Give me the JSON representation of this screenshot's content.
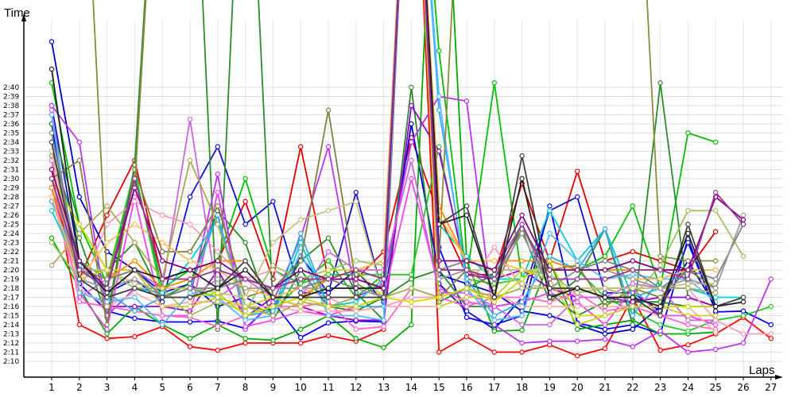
{
  "chart_data": {
    "type": "line",
    "xlabel": "Laps",
    "ylabel": "Time",
    "x": [
      1,
      2,
      3,
      4,
      5,
      6,
      7,
      8,
      9,
      10,
      11,
      12,
      13,
      14,
      15,
      16,
      17,
      18,
      19,
      20,
      21,
      22,
      23,
      24,
      25,
      26,
      27
    ],
    "y_ticks": [
      "2:10",
      "2:11",
      "2:12",
      "2:13",
      "2:14",
      "2:15",
      "2:16",
      "2:17",
      "2:18",
      "2:19",
      "2:20",
      "2:21",
      "2:22",
      "2:23",
      "2:24",
      "2:25",
      "2:26",
      "2:27",
      "2:28",
      "2:29",
      "2:30",
      "2:31",
      "2:32",
      "2:33",
      "2:34",
      "2:35",
      "2:36",
      "2:37",
      "2:38",
      "2:39",
      "2:40"
    ],
    "ylim_seconds": [
      129,
      162
    ],
    "grid": true,
    "series": [
      {
        "color": "#ff0000",
        "values": [
          151,
          134,
          132.5,
          132.7,
          133.8,
          131.6,
          131.2,
          132,
          132,
          132,
          132.8,
          132.2,
          133.5,
          200,
          131,
          132.7,
          131,
          131,
          131.8,
          130.6,
          131.4,
          137,
          131.2,
          131.8,
          133,
          134.8,
          132.5
        ]
      },
      {
        "color": "#e00000",
        "values": [
          149,
          139,
          146,
          152,
          139,
          140,
          141,
          147.5,
          139,
          153.5,
          139,
          139,
          142,
          154.5,
          146,
          139.5,
          139.5,
          149.5,
          141,
          150.8,
          141,
          142,
          141,
          140,
          144.2,
          null,
          null
        ]
      },
      {
        "color": "#0000ff",
        "values": [
          156,
          138.5,
          135.5,
          134.7,
          134.3,
          134.3,
          134.4,
          133.6,
          136.5,
          132.6,
          134.2,
          134.4,
          134.3,
          200,
          142.5,
          134.8,
          134,
          135,
          147,
          134.2,
          133.5,
          134,
          133,
          143.4,
          135.4,
          135.5,
          134
        ]
      },
      {
        "color": "#1010d0",
        "values": [
          158,
          141,
          137.5,
          139,
          136.5,
          148,
          153.5,
          145,
          147.5,
          137.5,
          137.5,
          148.5,
          137,
          200,
          138.5,
          135.5,
          133.5,
          137,
          146.5,
          148,
          137.5,
          137.5,
          135.5,
          143,
          135.5,
          null,
          null
        ]
      },
      {
        "color": "#0000c8",
        "values": [
          165,
          148,
          142,
          140,
          137.5,
          138.5,
          136,
          137,
          135.5,
          141.5,
          137.5,
          140,
          136.5,
          156,
          139.5,
          138.5,
          137.5,
          135.5,
          135,
          134,
          133,
          133.5,
          136,
          141,
          136,
          null,
          null
        ]
      },
      {
        "color": "#00c000",
        "values": [
          160.5,
          145,
          138.5,
          150.5,
          138,
          140,
          141,
          150,
          140,
          138.5,
          141,
          137,
          139.5,
          200,
          164,
          139,
          160.5,
          139,
          141,
          140,
          141.5,
          147,
          138,
          155,
          154,
          null,
          null
        ]
      },
      {
        "color": "#00aa00",
        "values": [
          143.5,
          138,
          133,
          136,
          134,
          132.5,
          134,
          132.5,
          132.3,
          133.5,
          135,
          132.5,
          131.5,
          134,
          200,
          141,
          133.3,
          133.4,
          141,
          133.5,
          134,
          134.5,
          133,
          133,
          133.2,
          null,
          null
        ]
      },
      {
        "color": "#22cc22",
        "values": [
          152.5,
          141,
          139,
          151,
          137,
          138,
          137,
          136,
          135.5,
          138.5,
          139.5,
          139.5,
          139.5,
          139.5,
          153.5,
          139,
          138.5,
          139,
          141.5,
          140,
          137,
          135.5,
          134,
          133.3,
          134.5,
          135,
          136
        ]
      },
      {
        "color": "#2e8b2e",
        "values": [
          153,
          143.5,
          134.8,
          151.5,
          200,
          200,
          133.5,
          200,
          136,
          141,
          143.5,
          137.5,
          134.5,
          160,
          136.5,
          138,
          139.5,
          144.5,
          136.5,
          139,
          144.5,
          134,
          160.5,
          137,
          136,
          null,
          null
        ]
      },
      {
        "color": "#228b22",
        "values": [
          156,
          145,
          140,
          143,
          137,
          138.5,
          146.5,
          143,
          134.5,
          140,
          136,
          135.5,
          137,
          139,
          140,
          136,
          136,
          136.5,
          137.5,
          135,
          136.5,
          136.5,
          136.5,
          136,
          136,
          null,
          null
        ]
      },
      {
        "color": "#9900cc",
        "values": [
          157,
          138,
          136,
          136,
          136,
          135.5,
          140,
          134.8,
          137,
          136,
          135,
          134.5,
          134.5,
          158,
          153,
          139.5,
          139,
          140,
          138,
          137,
          137,
          136.5,
          137,
          137,
          136,
          null,
          null
        ]
      },
      {
        "color": "#bb33ee",
        "values": [
          158,
          154,
          135,
          138,
          137,
          137,
          150.5,
          133.5,
          136.5,
          143.5,
          153.5,
          137,
          138.5,
          154,
          159,
          158.5,
          134,
          132,
          132.2,
          132.2,
          132.4,
          131.6,
          133.3,
          131,
          131.3,
          132,
          139
        ]
      },
      {
        "color": "#cc66dd",
        "values": [
          157.5,
          137,
          139,
          140,
          138,
          156.5,
          137,
          139,
          137,
          137,
          142,
          140,
          140,
          152,
          137.5,
          137.5,
          136,
          134,
          134,
          137,
          137,
          138.5,
          138,
          134.5,
          134.5,
          null,
          null
        ]
      },
      {
        "color": "#ee44ee",
        "values": [
          149,
          137.5,
          133.5,
          148,
          135,
          135,
          148.5,
          133.8,
          134.5,
          135.5,
          135,
          136,
          137,
          150,
          138,
          136.5,
          136,
          136.5,
          137.5,
          136.5,
          134,
          138,
          135,
          135,
          134,
          null,
          null
        ]
      },
      {
        "color": "#ff66cc",
        "values": [
          152,
          136.5,
          136,
          135.5,
          135,
          134.8,
          133.8,
          135,
          136,
          136,
          136.5,
          133.5,
          133.8,
          138,
          137,
          136,
          137,
          137,
          136.5,
          137.5,
          135.5,
          136,
          135,
          134,
          133.5,
          null,
          null
        ]
      },
      {
        "color": "#ff99bb",
        "values": [
          148,
          137.5,
          145,
          147.5,
          146,
          145,
          142,
          139,
          140,
          138,
          137,
          135.5,
          136,
          137,
          137,
          138,
          142.5,
          138,
          138,
          137.5,
          138,
          138,
          138,
          138,
          134.5,
          133,
          133
        ]
      },
      {
        "color": "#ffaaaa",
        "values": [
          153,
          138,
          136,
          137.5,
          136,
          136.5,
          136.5,
          136,
          136,
          135.5,
          135.5,
          135.5,
          136,
          136,
          136,
          137,
          137.5,
          136,
          136,
          136,
          136,
          136,
          136,
          136,
          133.2,
          null,
          null
        ]
      },
      {
        "color": "#00cccc",
        "values": [
          146.5,
          140,
          140,
          138,
          137.5,
          141,
          145.5,
          136,
          135,
          143,
          136,
          136.5,
          139,
          200,
          145,
          141.5,
          139,
          139,
          146.5,
          141,
          144.5,
          137,
          138,
          138,
          137,
          137,
          null
        ]
      },
      {
        "color": "#33aaee",
        "values": [
          147.5,
          140.5,
          137.5,
          135.5,
          137,
          138,
          146,
          135,
          135.5,
          144,
          136,
          136,
          136,
          200,
          157.5,
          139,
          135,
          136.5,
          141.5,
          140,
          144.5,
          135,
          139,
          140,
          138,
          null,
          null
        ]
      },
      {
        "color": "#55bbff",
        "values": [
          157,
          137.5,
          136.5,
          137,
          134,
          137.5,
          137,
          134.5,
          135,
          142,
          135,
          135,
          134.5,
          200,
          159,
          138,
          134.5,
          135,
          144,
          141,
          139,
          139.5,
          139,
          139,
          136.5,
          null,
          null
        ]
      },
      {
        "color": "#808040",
        "values": [
          150,
          152,
          134,
          151,
          142,
          142,
          147,
          137,
          138,
          141,
          157.5,
          138.5,
          137,
          200,
          137,
          140,
          138,
          144.5,
          140,
          140.5,
          136,
          138,
          137,
          140,
          138,
          null,
          null
        ]
      },
      {
        "color": "#8b8b3a",
        "values": [
          200,
          200,
          139,
          149,
          200,
          200,
          200,
          200,
          200,
          200,
          200,
          200,
          200,
          200,
          141,
          200,
          200,
          200,
          200,
          200,
          200,
          200,
          141.5,
          141,
          141,
          null,
          null
        ]
      },
      {
        "color": "#aaaa55",
        "values": [
          140.5,
          144,
          147,
          143,
          139,
          152,
          145,
          136,
          135,
          136.5,
          136,
          137,
          137,
          138,
          137,
          138,
          137,
          138,
          138,
          138,
          138,
          138,
          138,
          138,
          137.5,
          null,
          null
        ]
      },
      {
        "color": "#a0c060",
        "values": [
          143,
          139,
          140,
          138,
          138,
          135,
          136.5,
          135.5,
          140.5,
          139,
          140,
          141,
          140.5,
          200,
          140,
          140,
          140,
          140,
          139.5,
          137.5,
          138,
          137,
          140.5,
          146.5,
          146.5,
          141.5,
          null
        ]
      },
      {
        "color": "#c8c080",
        "values": [
          151,
          140,
          140,
          138.5,
          138,
          138,
          137.5,
          137,
          143,
          145.5,
          146.5,
          147.5,
          137,
          200,
          140,
          140,
          140,
          138.5,
          138,
          138,
          138,
          138,
          138,
          138.5,
          138.5,
          null,
          null
        ]
      },
      {
        "color": "#ccdd00",
        "values": [
          150,
          145,
          140,
          140,
          137,
          137,
          137.5,
          135,
          136,
          137,
          136,
          136,
          137,
          136.5,
          137,
          138,
          136.5,
          139,
          141,
          135,
          135,
          136,
          136,
          136,
          136,
          null,
          null
        ]
      },
      {
        "color": "#cccc33",
        "values": [
          150,
          139,
          140,
          140,
          136,
          136,
          137,
          136,
          137,
          136,
          140,
          140,
          137,
          200,
          136,
          137,
          137,
          140,
          139,
          134,
          135,
          136,
          136,
          135,
          135,
          null,
          null
        ]
      },
      {
        "color": "#ff8800",
        "values": [
          149,
          140,
          139,
          141,
          138,
          139,
          141,
          141,
          137,
          137,
          139,
          140,
          141,
          200,
          147,
          141,
          141,
          141,
          141,
          140,
          140,
          140,
          140,
          140,
          140,
          null,
          null
        ]
      },
      {
        "color": "#ffbb55",
        "values": [
          148,
          139,
          143,
          145,
          143,
          141,
          140,
          138,
          137,
          138,
          139,
          140,
          141,
          200,
          146,
          141,
          141,
          140,
          140,
          140,
          140,
          139,
          139,
          140,
          140,
          null,
          null
        ]
      },
      {
        "color": "#808080",
        "values": [
          155,
          140,
          139,
          140,
          137,
          138,
          138,
          139,
          138,
          138,
          139,
          138,
          138,
          200,
          140,
          141,
          140,
          145,
          138,
          140,
          141,
          140,
          138,
          140,
          139,
          145,
          null
        ]
      },
      {
        "color": "#999999",
        "values": [
          150,
          139,
          138,
          139,
          137,
          137,
          139,
          138,
          138,
          138,
          138,
          138,
          137,
          200,
          139,
          140,
          139,
          144,
          138,
          140,
          140,
          139,
          138,
          139,
          138,
          146,
          null
        ]
      },
      {
        "color": "#404040",
        "values": [
          154,
          139,
          137,
          138,
          137,
          137,
          138,
          141,
          137,
          137,
          137,
          137,
          137,
          200,
          145,
          147,
          137,
          152.5,
          138,
          138,
          137,
          137,
          135,
          145,
          136,
          137,
          null
        ]
      },
      {
        "color": "#222222",
        "values": [
          162,
          141,
          137.5,
          140,
          139,
          140,
          138,
          140,
          137,
          137,
          138,
          138,
          138,
          200,
          145,
          146,
          137,
          150,
          137,
          138,
          137,
          137,
          136,
          144,
          136,
          136.5,
          null
        ]
      },
      {
        "color": "#800080",
        "values": [
          151,
          141,
          138,
          149,
          141,
          140,
          141,
          139,
          138,
          140,
          139,
          139,
          138,
          200,
          141,
          141,
          140,
          146,
          140,
          140,
          140,
          141,
          140,
          140,
          148,
          145.5,
          null
        ]
      },
      {
        "color": "#993399",
        "values": [
          150,
          140,
          138,
          150,
          139,
          139,
          140,
          139,
          138,
          139,
          139,
          140,
          139,
          200,
          140,
          140,
          139,
          145,
          139,
          139,
          139,
          140,
          140,
          139,
          148.5,
          145,
          null
        ]
      }
    ]
  }
}
